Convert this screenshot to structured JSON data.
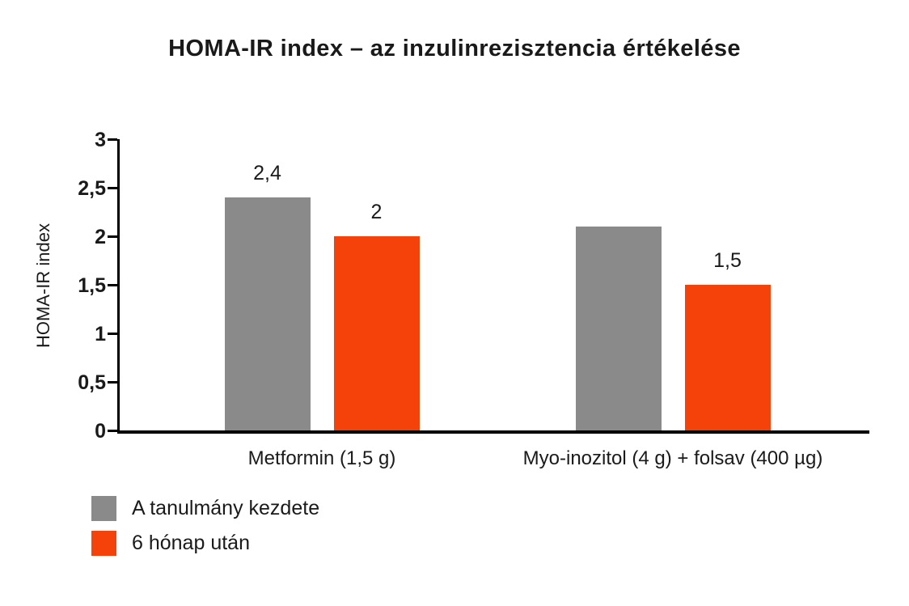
{
  "title": "HOMA-IR index – az inzulinrezisztencia értékelése",
  "colors": {
    "series_start": "#8a8a8a",
    "series_after": "#f4420a",
    "axis": "#000000",
    "text": "#1a1a1a",
    "background": "#ffffff"
  },
  "chart_data": {
    "type": "bar",
    "title": "HOMA-IR index – az inzulinrezisztencia értékelése",
    "xlabel": "",
    "ylabel": "HOMA-IR index",
    "ylim": [
      0,
      3
    ],
    "ytick_step": 0.5,
    "grid": false,
    "legend_position": "bottom-left",
    "decimal_separator": ",",
    "yticks": [
      {
        "value": 0,
        "label": "0"
      },
      {
        "value": 0.5,
        "label": "0,5"
      },
      {
        "value": 1,
        "label": "1"
      },
      {
        "value": 1.5,
        "label": "1,5"
      },
      {
        "value": 2,
        "label": "2"
      },
      {
        "value": 2.5,
        "label": "2,5"
      },
      {
        "value": 3,
        "label": "3"
      }
    ],
    "categories": [
      "Metformin (1,5 g)",
      "Myo-inozitol (4 g) + folsav (400 µg)"
    ],
    "series": [
      {
        "name": "A tanulmány kezdete",
        "color": "#8a8a8a",
        "values": [
          2.4,
          2.1
        ],
        "value_labels": [
          "2,4",
          ""
        ]
      },
      {
        "name": "6 hónap után",
        "color": "#f4420a",
        "values": [
          2.0,
          1.5
        ],
        "value_labels": [
          "2",
          "1,5"
        ]
      }
    ]
  }
}
